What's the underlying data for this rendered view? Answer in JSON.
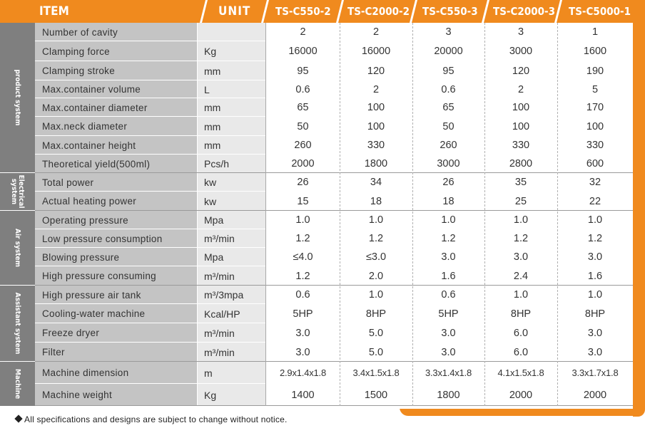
{
  "header": {
    "item": "ITEM",
    "unit": "UNIT",
    "models": [
      "TS-C550-2",
      "TS-C2000-2",
      "TS-C550-3",
      "TS-C2000-3",
      "TS-C5000-1"
    ]
  },
  "sections": [
    {
      "label": "product system"
    },
    {
      "label": "Electrical system"
    },
    {
      "label": "Air system"
    },
    {
      "label": "Assistant system"
    },
    {
      "label": "Machine"
    }
  ],
  "rows": [
    {
      "item": "Number of cavity",
      "unit": "",
      "values": [
        "2",
        "2",
        "3",
        "3",
        "1"
      ]
    },
    {
      "item": "Clamping force",
      "unit": "Kg",
      "values": [
        "16000",
        "16000",
        "20000",
        "3000",
        "1600"
      ]
    },
    {
      "item": "Clamping stroke",
      "unit": "mm",
      "values": [
        "95",
        "120",
        "95",
        "120",
        "190"
      ]
    },
    {
      "item": "Max.container volume",
      "unit": "L",
      "values": [
        "0.6",
        "2",
        "0.6",
        "2",
        "5"
      ]
    },
    {
      "item": "Max.container diameter",
      "unit": "mm",
      "values": [
        "65",
        "100",
        "65",
        "100",
        "170"
      ]
    },
    {
      "item": "Max.neck diameter",
      "unit": "mm",
      "values": [
        "50",
        "100",
        "50",
        "100",
        "100"
      ]
    },
    {
      "item": "Max.container height",
      "unit": "mm",
      "values": [
        "260",
        "330",
        "260",
        "330",
        "330"
      ]
    },
    {
      "item": "Theoretical yield(500ml)",
      "unit": "Pcs/h",
      "values": [
        "2000",
        "1800",
        "3000",
        "2800",
        "600"
      ]
    },
    {
      "item": "Total power",
      "unit": "kw",
      "values": [
        "26",
        "34",
        "26",
        "35",
        "32"
      ]
    },
    {
      "item": "Actual heating power",
      "unit": "kw",
      "values": [
        "15",
        "18",
        "18",
        "25",
        "22"
      ]
    },
    {
      "item": "Operating pressure",
      "unit": "Mpa",
      "values": [
        "1.0",
        "1.0",
        "1.0",
        "1.0",
        "1.0"
      ]
    },
    {
      "item": "Low pressure consumption",
      "unit": "m³/min",
      "values": [
        "1.2",
        "1.2",
        "1.2",
        "1.2",
        "1.2"
      ]
    },
    {
      "item": "Blowing pressure",
      "unit": "Mpa",
      "values": [
        "≤4.0",
        "≤3.0",
        "3.0",
        "3.0",
        "3.0"
      ]
    },
    {
      "item": "High pressure consuming",
      "unit": "m³/min",
      "values": [
        "1.2",
        "2.0",
        "1.6",
        "2.4",
        "1.6"
      ]
    },
    {
      "item": "High pressure air tank",
      "unit": "m³/3mpa",
      "values": [
        "0.6",
        "1.0",
        "0.6",
        "1.0",
        "1.0"
      ]
    },
    {
      "item": "Cooling-water machine",
      "unit": "Kcal/HP",
      "values": [
        "5HP",
        "8HP",
        "5HP",
        "8HP",
        "8HP"
      ]
    },
    {
      "item": "Freeze dryer",
      "unit": "m³/min",
      "values": [
        "3.0",
        "5.0",
        "3.0",
        "6.0",
        "3.0"
      ]
    },
    {
      "item": "Filter",
      "unit": "m³/min",
      "values": [
        "3.0",
        "5.0",
        "3.0",
        "6.0",
        "3.0"
      ]
    },
    {
      "item": "Machine dimension",
      "unit": "m",
      "values": [
        "2.9x1.4x1.8",
        "3.4x1.5x1.8",
        "3.3x1.4x1.8",
        "4.1x1.5x1.8",
        "3.3x1.7x1.8"
      ]
    },
    {
      "item": "Machine weight",
      "unit": "Kg",
      "values": [
        "1400",
        "1500",
        "1800",
        "2000",
        "2000"
      ]
    }
  ],
  "footer": {
    "note": "All specifications and designs are subject to change without notice."
  },
  "colors": {
    "accent": "#f08a1e",
    "section_bg": "#7f7f7f",
    "item_bg": "#c4c4c4",
    "unit_bg": "#e9e9e9"
  }
}
